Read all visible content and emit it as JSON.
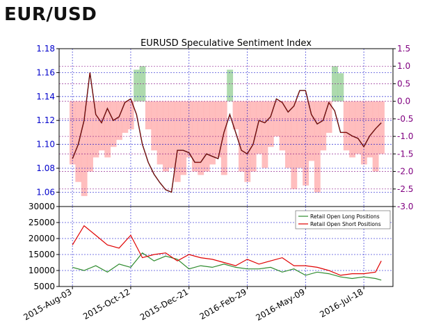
{
  "page": {
    "title": "EUR/USD"
  },
  "colors": {
    "price": "#111111",
    "price_highlight": "#cc0000",
    "sentiment_negative": "#ffb3b3",
    "sentiment_positive": "#9fd39f",
    "axis_left": "#0000cc",
    "axis_right": "#800080",
    "grid": "#0000cc",
    "long_line": "#2e8b2e",
    "short_line": "#e00000"
  },
  "chart_data": [
    {
      "type": "line",
      "title": "EURUSD Speculative Sentiment Index",
      "x_tick_labels": [
        "2015-Aug-03",
        "2015-Oct-12",
        "2015-Dec-21",
        "2016-Feb-29",
        "2016-May-09",
        "2016-Jul-18"
      ],
      "x_range": [
        "2015-07-18",
        "2016-08-22"
      ],
      "y_left": {
        "ticks": [
          "1.18",
          "1.16",
          "1.14",
          "1.12",
          "1.10",
          "1.08",
          "1.06"
        ],
        "range": [
          1.048,
          1.18
        ]
      },
      "y_right": {
        "ticks": [
          "1.5",
          "1.0",
          "0.5",
          "0.0",
          "-0.5",
          "-1.0",
          "-1.5",
          "-2.0",
          "-2.5",
          "-3.0"
        ],
        "range": [
          -3.0,
          1.5
        ]
      },
      "grid": true,
      "price_series": {
        "dates": [
          "2015-08-03",
          "2015-08-10",
          "2015-08-17",
          "2015-08-24",
          "2015-08-31",
          "2015-09-07",
          "2015-09-14",
          "2015-09-21",
          "2015-09-28",
          "2015-10-05",
          "2015-10-12",
          "2015-10-19",
          "2015-10-26",
          "2015-11-02",
          "2015-11-09",
          "2015-11-16",
          "2015-11-23",
          "2015-11-30",
          "2015-12-07",
          "2015-12-14",
          "2015-12-21",
          "2015-12-28",
          "2016-01-04",
          "2016-01-11",
          "2016-01-18",
          "2016-01-25",
          "2016-02-01",
          "2016-02-08",
          "2016-02-15",
          "2016-02-22",
          "2016-02-29",
          "2016-03-07",
          "2016-03-14",
          "2016-03-21",
          "2016-03-28",
          "2016-04-04",
          "2016-04-11",
          "2016-04-18",
          "2016-04-25",
          "2016-05-02",
          "2016-05-09",
          "2016-05-16",
          "2016-05-23",
          "2016-05-30",
          "2016-06-06",
          "2016-06-13",
          "2016-06-20",
          "2016-06-27",
          "2016-07-04",
          "2016-07-11",
          "2016-07-18",
          "2016-07-25",
          "2016-08-01",
          "2016-08-08"
        ],
        "values": [
          1.088,
          1.1,
          1.12,
          1.16,
          1.125,
          1.118,
          1.13,
          1.12,
          1.123,
          1.135,
          1.138,
          1.125,
          1.1,
          1.085,
          1.075,
          1.068,
          1.062,
          1.06,
          1.095,
          1.095,
          1.093,
          1.085,
          1.085,
          1.092,
          1.09,
          1.088,
          1.11,
          1.125,
          1.11,
          1.095,
          1.092,
          1.1,
          1.12,
          1.118,
          1.123,
          1.138,
          1.135,
          1.127,
          1.132,
          1.145,
          1.145,
          1.125,
          1.117,
          1.12,
          1.135,
          1.128,
          1.11,
          1.11,
          1.107,
          1.105,
          1.098,
          1.107,
          1.113,
          1.118
        ]
      },
      "sentiment_series": {
        "dates": [
          "2015-08-03",
          "2015-08-10",
          "2015-08-17",
          "2015-08-24",
          "2015-08-31",
          "2015-09-07",
          "2015-09-14",
          "2015-09-21",
          "2015-09-28",
          "2015-10-05",
          "2015-10-12",
          "2015-10-19",
          "2015-10-26",
          "2015-11-02",
          "2015-11-09",
          "2015-11-16",
          "2015-11-23",
          "2015-11-30",
          "2015-12-07",
          "2015-12-14",
          "2015-12-21",
          "2015-12-28",
          "2016-01-04",
          "2016-01-11",
          "2016-01-18",
          "2016-01-25",
          "2016-02-01",
          "2016-02-08",
          "2016-02-15",
          "2016-02-22",
          "2016-02-29",
          "2016-03-07",
          "2016-03-14",
          "2016-03-21",
          "2016-03-28",
          "2016-04-04",
          "2016-04-11",
          "2016-04-18",
          "2016-04-25",
          "2016-05-02",
          "2016-05-09",
          "2016-05-16",
          "2016-05-23",
          "2016-05-30",
          "2016-06-06",
          "2016-06-13",
          "2016-06-20",
          "2016-06-27",
          "2016-07-04",
          "2016-07-11",
          "2016-07-18",
          "2016-07-25",
          "2016-08-01",
          "2016-08-08"
        ],
        "values": [
          -1.8,
          -2.3,
          -2.7,
          -2.0,
          -1.6,
          -1.4,
          -1.6,
          -1.3,
          -1.1,
          -0.9,
          -0.8,
          0.9,
          1.0,
          -0.8,
          -1.4,
          -1.8,
          -2.0,
          -1.9,
          -2.3,
          -2.1,
          -1.6,
          -2.0,
          -2.1,
          -2.0,
          -1.8,
          -1.6,
          -2.1,
          0.9,
          -0.8,
          -2.0,
          -2.3,
          -2.0,
          -1.5,
          -1.9,
          -1.3,
          -1.0,
          -1.4,
          -1.9,
          -2.5,
          -1.9,
          -2.4,
          -1.7,
          -2.6,
          -1.4,
          -0.9,
          1.0,
          0.8,
          -1.4,
          -1.6,
          -1.5,
          -1.8,
          -1.6,
          -2.0,
          -1.5
        ]
      }
    },
    {
      "type": "line",
      "x_tick_labels": [
        "2015-Aug-03",
        "2015-Oct-12",
        "2015-Dec-21",
        "2016-Feb-29",
        "2016-May-09",
        "2016-Jul-18"
      ],
      "x_range": [
        "2015-07-18",
        "2016-08-22"
      ],
      "y_ticks": [
        "30000",
        "25000",
        "20000",
        "15000",
        "10000",
        "5000"
      ],
      "ylim": [
        5000,
        30000
      ],
      "legend": "top-right",
      "series": [
        {
          "name": "Retail Open Long Positions",
          "dates": [
            "2015-08-03",
            "2015-08-17",
            "2015-08-31",
            "2015-09-14",
            "2015-09-28",
            "2015-10-12",
            "2015-10-26",
            "2015-11-09",
            "2015-11-23",
            "2015-12-07",
            "2015-12-21",
            "2016-01-04",
            "2016-01-18",
            "2016-02-01",
            "2016-02-15",
            "2016-02-29",
            "2016-03-14",
            "2016-03-28",
            "2016-04-11",
            "2016-04-25",
            "2016-05-09",
            "2016-05-23",
            "2016-06-06",
            "2016-06-20",
            "2016-07-04",
            "2016-07-18",
            "2016-08-01",
            "2016-08-08"
          ],
          "values": [
            11000,
            10000,
            11500,
            9500,
            12000,
            11000,
            15500,
            13000,
            14500,
            13500,
            10500,
            11500,
            11000,
            12000,
            11000,
            10500,
            10500,
            11000,
            9500,
            10500,
            8500,
            9500,
            9000,
            8000,
            7500,
            8000,
            7500,
            7000
          ]
        },
        {
          "name": "Retail Open Short Positions",
          "dates": [
            "2015-08-03",
            "2015-08-17",
            "2015-08-31",
            "2015-09-14",
            "2015-09-28",
            "2015-10-12",
            "2015-10-26",
            "2015-11-09",
            "2015-11-23",
            "2015-12-07",
            "2015-12-21",
            "2016-01-04",
            "2016-01-18",
            "2016-02-01",
            "2016-02-15",
            "2016-02-29",
            "2016-03-14",
            "2016-03-28",
            "2016-04-11",
            "2016-04-25",
            "2016-05-09",
            "2016-05-23",
            "2016-06-06",
            "2016-06-20",
            "2016-07-04",
            "2016-07-18",
            "2016-08-01",
            "2016-08-08"
          ],
          "values": [
            18000,
            24000,
            21000,
            18000,
            17000,
            21000,
            14000,
            15000,
            15500,
            13000,
            15000,
            14000,
            13500,
            12500,
            11500,
            13500,
            12000,
            13000,
            14000,
            11500,
            11500,
            11000,
            10000,
            8500,
            9000,
            9000,
            9500,
            13000
          ]
        }
      ]
    }
  ]
}
